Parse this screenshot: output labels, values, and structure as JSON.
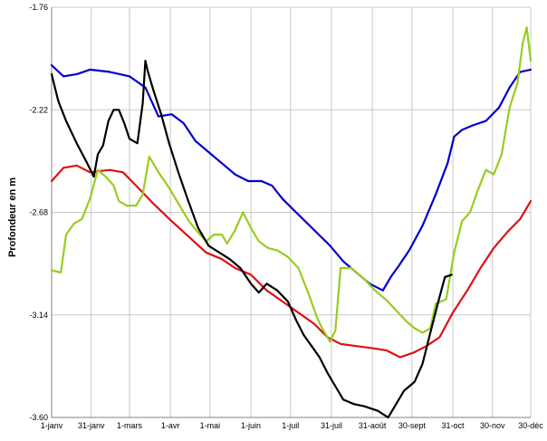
{
  "chart_data": {
    "type": "line",
    "title": "",
    "xlabel": "",
    "ylabel": "Profondeur en m",
    "y_axis_reversed": true,
    "ylim": [
      -3.6,
      -1.76
    ],
    "yticks": [
      -1.76,
      -2.22,
      -2.68,
      -3.14,
      -3.6
    ],
    "ytick_labels": [
      "-1.76",
      "-2.22",
      "-2.68",
      "-3.14",
      "-3.60"
    ],
    "xlim": [
      1,
      364
    ],
    "xticks": [
      1,
      31,
      60,
      91,
      121,
      152,
      182,
      213,
      244,
      274,
      305,
      335,
      364
    ],
    "xtick_labels": [
      "1-janv",
      "31-janv",
      "1-mars",
      "1-avr",
      "1-mai",
      "1-juin",
      "1-juil",
      "31-juil",
      "31-août",
      "30-sept",
      "31-oct",
      "30-nov",
      "30-déc"
    ],
    "grid": true,
    "legend": "none",
    "series": [
      {
        "color": "#0000cc",
        "points": [
          [
            1,
            -2.02
          ],
          [
            10,
            -2.07
          ],
          [
            20,
            -2.06
          ],
          [
            30,
            -2.04
          ],
          [
            45,
            -2.05
          ],
          [
            60,
            -2.07
          ],
          [
            72,
            -2.12
          ],
          [
            82,
            -2.25
          ],
          [
            92,
            -2.24
          ],
          [
            101,
            -2.28
          ],
          [
            110,
            -2.36
          ],
          [
            120,
            -2.41
          ],
          [
            130,
            -2.46
          ],
          [
            140,
            -2.51
          ],
          [
            150,
            -2.54
          ],
          [
            160,
            -2.54
          ],
          [
            168,
            -2.56
          ],
          [
            176,
            -2.62
          ],
          [
            188,
            -2.69
          ],
          [
            200,
            -2.76
          ],
          [
            212,
            -2.83
          ],
          [
            222,
            -2.9
          ],
          [
            232,
            -2.95
          ],
          [
            242,
            -3.0
          ],
          [
            252,
            -3.03
          ],
          [
            258,
            -2.97
          ],
          [
            264,
            -2.92
          ],
          [
            272,
            -2.85
          ],
          [
            282,
            -2.74
          ],
          [
            292,
            -2.6
          ],
          [
            301,
            -2.46
          ],
          [
            306,
            -2.34
          ],
          [
            312,
            -2.31
          ],
          [
            320,
            -2.29
          ],
          [
            330,
            -2.27
          ],
          [
            340,
            -2.21
          ],
          [
            348,
            -2.12
          ],
          [
            356,
            -2.05
          ],
          [
            364,
            -2.04
          ]
        ]
      },
      {
        "color": "#dd1111",
        "points": [
          [
            1,
            -2.54
          ],
          [
            10,
            -2.48
          ],
          [
            20,
            -2.47
          ],
          [
            30,
            -2.5
          ],
          [
            45,
            -2.49
          ],
          [
            55,
            -2.5
          ],
          [
            65,
            -2.56
          ],
          [
            78,
            -2.64
          ],
          [
            92,
            -2.72
          ],
          [
            105,
            -2.79
          ],
          [
            118,
            -2.86
          ],
          [
            130,
            -2.89
          ],
          [
            140,
            -2.93
          ],
          [
            152,
            -2.96
          ],
          [
            164,
            -3.03
          ],
          [
            176,
            -3.08
          ],
          [
            188,
            -3.13
          ],
          [
            200,
            -3.18
          ],
          [
            210,
            -3.24
          ],
          [
            220,
            -3.27
          ],
          [
            232,
            -3.28
          ],
          [
            245,
            -3.29
          ],
          [
            255,
            -3.3
          ],
          [
            265,
            -3.33
          ],
          [
            275,
            -3.31
          ],
          [
            285,
            -3.28
          ],
          [
            295,
            -3.24
          ],
          [
            305,
            -3.13
          ],
          [
            316,
            -3.03
          ],
          [
            326,
            -2.93
          ],
          [
            336,
            -2.84
          ],
          [
            346,
            -2.77
          ],
          [
            356,
            -2.71
          ],
          [
            364,
            -2.63
          ]
        ]
      },
      {
        "color": "#99cc22",
        "points": [
          [
            1,
            -2.94
          ],
          [
            8,
            -2.95
          ],
          [
            12,
            -2.78
          ],
          [
            18,
            -2.73
          ],
          [
            24,
            -2.71
          ],
          [
            30,
            -2.62
          ],
          [
            36,
            -2.49
          ],
          [
            42,
            -2.52
          ],
          [
            48,
            -2.56
          ],
          [
            52,
            -2.63
          ],
          [
            58,
            -2.65
          ],
          [
            65,
            -2.65
          ],
          [
            70,
            -2.6
          ],
          [
            75,
            -2.43
          ],
          [
            82,
            -2.5
          ],
          [
            90,
            -2.57
          ],
          [
            98,
            -2.65
          ],
          [
            105,
            -2.72
          ],
          [
            112,
            -2.77
          ],
          [
            118,
            -2.81
          ],
          [
            124,
            -2.78
          ],
          [
            130,
            -2.78
          ],
          [
            134,
            -2.82
          ],
          [
            140,
            -2.76
          ],
          [
            146,
            -2.68
          ],
          [
            152,
            -2.75
          ],
          [
            158,
            -2.81
          ],
          [
            165,
            -2.84
          ],
          [
            172,
            -2.85
          ],
          [
            180,
            -2.88
          ],
          [
            188,
            -2.93
          ],
          [
            196,
            -3.05
          ],
          [
            202,
            -3.15
          ],
          [
            206,
            -3.2
          ],
          [
            212,
            -3.26
          ],
          [
            216,
            -3.21
          ],
          [
            220,
            -2.93
          ],
          [
            228,
            -2.93
          ],
          [
            238,
            -2.98
          ],
          [
            246,
            -3.03
          ],
          [
            254,
            -3.07
          ],
          [
            262,
            -3.12
          ],
          [
            270,
            -3.17
          ],
          [
            276,
            -3.2
          ],
          [
            282,
            -3.22
          ],
          [
            288,
            -3.2
          ],
          [
            292,
            -3.09
          ],
          [
            300,
            -3.07
          ],
          [
            306,
            -2.86
          ],
          [
            312,
            -2.72
          ],
          [
            318,
            -2.68
          ],
          [
            324,
            -2.58
          ],
          [
            330,
            -2.49
          ],
          [
            336,
            -2.51
          ],
          [
            342,
            -2.42
          ],
          [
            348,
            -2.21
          ],
          [
            354,
            -2.1
          ],
          [
            358,
            -1.92
          ],
          [
            361,
            -1.85
          ],
          [
            364,
            -2.0
          ]
        ]
      },
      {
        "color": "#000000",
        "points": [
          [
            1,
            -2.06
          ],
          [
            6,
            -2.18
          ],
          [
            12,
            -2.27
          ],
          [
            20,
            -2.37
          ],
          [
            28,
            -2.46
          ],
          [
            33,
            -2.52
          ],
          [
            36,
            -2.42
          ],
          [
            40,
            -2.38
          ],
          [
            44,
            -2.27
          ],
          [
            48,
            -2.22
          ],
          [
            52,
            -2.22
          ],
          [
            56,
            -2.28
          ],
          [
            60,
            -2.35
          ],
          [
            66,
            -2.37
          ],
          [
            70,
            -2.19
          ],
          [
            72,
            -2.0
          ],
          [
            74,
            -2.05
          ],
          [
            78,
            -2.13
          ],
          [
            84,
            -2.24
          ],
          [
            90,
            -2.37
          ],
          [
            97,
            -2.5
          ],
          [
            104,
            -2.62
          ],
          [
            112,
            -2.75
          ],
          [
            120,
            -2.83
          ],
          [
            128,
            -2.86
          ],
          [
            136,
            -2.89
          ],
          [
            144,
            -2.93
          ],
          [
            152,
            -3.0
          ],
          [
            158,
            -3.04
          ],
          [
            164,
            -3.0
          ],
          [
            172,
            -3.03
          ],
          [
            180,
            -3.08
          ],
          [
            186,
            -3.16
          ],
          [
            192,
            -3.23
          ],
          [
            198,
            -3.28
          ],
          [
            204,
            -3.33
          ],
          [
            210,
            -3.4
          ],
          [
            216,
            -3.46
          ],
          [
            222,
            -3.52
          ],
          [
            230,
            -3.54
          ],
          [
            238,
            -3.55
          ],
          [
            248,
            -3.57
          ],
          [
            256,
            -3.6
          ],
          [
            262,
            -3.54
          ],
          [
            268,
            -3.48
          ],
          [
            276,
            -3.44
          ],
          [
            282,
            -3.36
          ],
          [
            288,
            -3.22
          ],
          [
            294,
            -3.08
          ],
          [
            299,
            -2.97
          ],
          [
            304,
            -2.96
          ]
        ]
      }
    ]
  }
}
